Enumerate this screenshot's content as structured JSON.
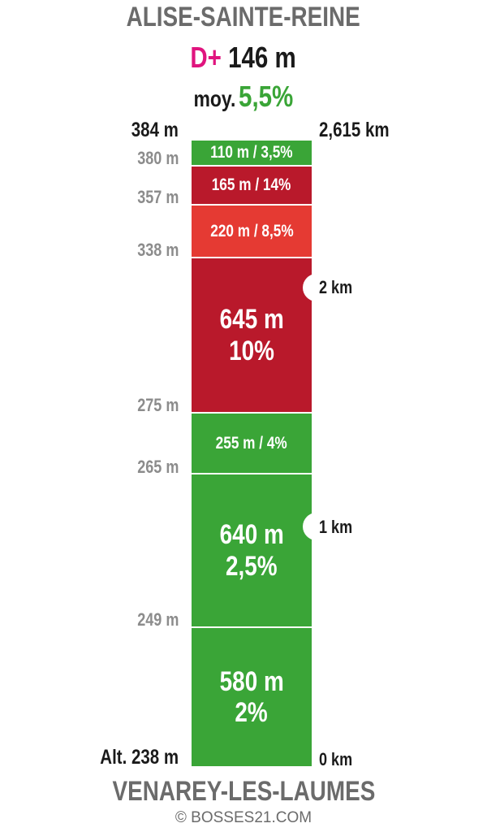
{
  "header": {
    "title": "ALISE-SAINTE-REINE",
    "dplus_label": "D+",
    "dplus_value": "146 m",
    "avg_label": "moy.",
    "avg_value": "5,5%"
  },
  "footer": {
    "title": "VENAREY-LES-LAUMES",
    "credit": "© BOSSES21.COM"
  },
  "altitudes": {
    "top": "384 m",
    "a380": "380 m",
    "a357": "357 m",
    "a338": "338 m",
    "a275": "275 m",
    "a265": "265 m",
    "a249": "249 m",
    "bottom": "Alt. 238 m"
  },
  "km_markers": {
    "end": "2,615 km",
    "km2": "2 km",
    "km1": "1 km",
    "start": "0 km"
  },
  "segments": [
    {
      "text": "110 m / 3,5%",
      "color": "#3aa537"
    },
    {
      "text": "165 m / 14%",
      "color": "#b9192b"
    },
    {
      "text": "220 m / 8,5%",
      "color": "#e53a33"
    },
    {
      "line1": "645 m",
      "line2": "10%",
      "color": "#b9192b"
    },
    {
      "text": "255 m / 4%",
      "color": "#3aa537"
    },
    {
      "line1": "640 m",
      "line2": "2,5%",
      "color": "#3aa537"
    },
    {
      "line1": "580 m",
      "line2": "2%",
      "color": "#3aa537"
    }
  ],
  "colors": {
    "dplus": "#e0147e",
    "avg": "#3aa537",
    "title": "#6b6b6b"
  }
}
